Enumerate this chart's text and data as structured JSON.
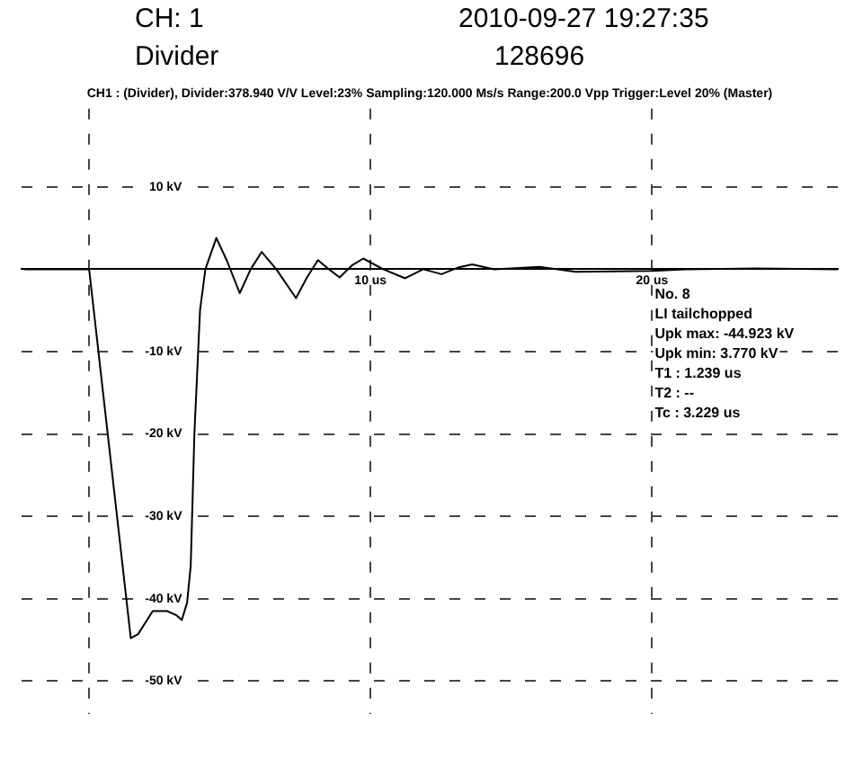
{
  "chart_data": {
    "type": "line",
    "title": "CH: 1",
    "subtitle": "CH1 : (Divider), Divider:378.940 V/V Level:23% Sampling:120.000 Ms/s Range:200.0 Vpp Trigger:Level 20% (Master)",
    "annotations": [
      "2010-09-27 19:27:35",
      "Divider",
      "128696",
      "No. 8",
      "LI tailchopped",
      "Upk max: -44.923 kV",
      "Upk min: 3.770 kV",
      "T1 : 1.239 us",
      "T2 : --",
      "Tc : 3.229 us"
    ],
    "x": [
      -2.3,
      0,
      1.48,
      1.74,
      2.26,
      2.77,
      3.1,
      3.29,
      3.48,
      3.61,
      3.74,
      3.94,
      4.13,
      4.52,
      4.9,
      5.35,
      5.74,
      6.13,
      6.65,
      7.35,
      7.74,
      8.13,
      8.52,
      8.9,
      9.35,
      9.74,
      10.45,
      11.23,
      11.87,
      12.52,
      13.1,
      13.61,
      14.39,
      16,
      17.29,
      20,
      21.16,
      23.74,
      26.6
    ],
    "series": [
      {
        "color": "#000000",
        "values": [
          0,
          0,
          -44.8,
          -44.3,
          -41.5,
          -41.5,
          -42,
          -42.6,
          -40.5,
          -36,
          -20,
          -5,
          0,
          3.8,
          1,
          -2.9,
          0,
          2.1,
          0,
          -3.5,
          -1,
          1.1,
          0,
          -1,
          0.5,
          1.3,
          0,
          -1.1,
          0,
          -0.6,
          0.2,
          0.6,
          0,
          0.3,
          -0.3,
          -0.2,
          0,
          0.1,
          0
        ]
      }
    ],
    "xlim": [
      -2.4,
      26.6
    ],
    "ylim": [
      -54,
      19.5
    ],
    "xticks": [
      {
        "value": 0,
        "label": null
      },
      {
        "value": 10,
        "label": "10 us"
      },
      {
        "value": 20,
        "label": "20 us"
      }
    ],
    "yticks": [
      {
        "value": -50,
        "label": "-50 kV"
      },
      {
        "value": -40,
        "label": "-40 kV"
      },
      {
        "value": -30,
        "label": "-30 kV"
      },
      {
        "value": -20,
        "label": "-20 kV"
      },
      {
        "value": -10,
        "label": "-10 kV"
      },
      {
        "value": 0,
        "label": null
      },
      {
        "value": 10,
        "label": "10 kV"
      }
    ],
    "grid": true,
    "legend": false,
    "marker": "none",
    "line_style": "solid"
  }
}
